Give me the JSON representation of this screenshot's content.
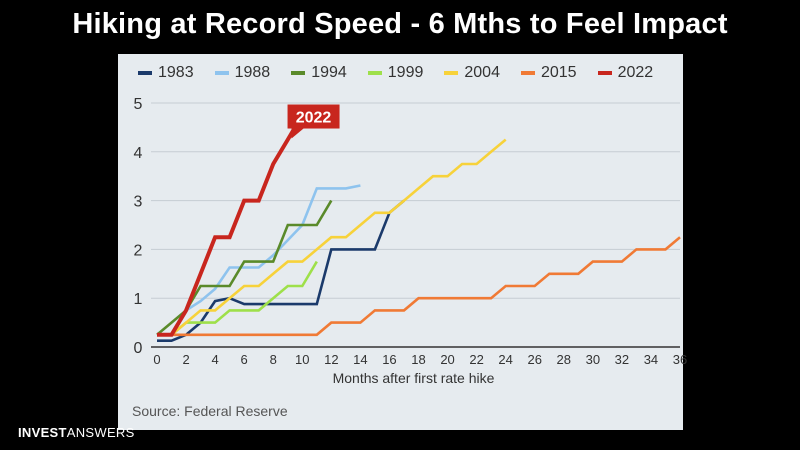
{
  "header": {
    "title": "Hiking at Record Speed - 6 Mths to Feel Impact"
  },
  "footer": {
    "source": "Source: Federal Reserve",
    "brand_bold": "INVEST",
    "brand_light": "ANSWERS"
  },
  "chart_data": {
    "type": "line",
    "xlabel": "Months after first rate hike",
    "ylabel": "",
    "xlim": [
      0,
      36
    ],
    "ylim": [
      0,
      5
    ],
    "xticks": [
      "0",
      "2",
      "4",
      "6",
      "8",
      "10",
      "12",
      "14",
      "16",
      "18",
      "20",
      "22",
      "24",
      "26",
      "28",
      "30",
      "32",
      "34",
      "36"
    ],
    "yticks": [
      "0",
      "1",
      "2",
      "3",
      "4",
      "5"
    ],
    "grid": true,
    "legend_position": "top",
    "annotation": {
      "text": "2022",
      "x": 10.5,
      "y": 4.6
    },
    "series": [
      {
        "name": "1983",
        "color": "#1b3a6b",
        "points": [
          [
            0,
            0.13
          ],
          [
            1,
            0.13
          ],
          [
            2,
            0.25
          ],
          [
            3,
            0.5
          ],
          [
            4,
            0.94
          ],
          [
            5,
            1.0
          ],
          [
            6,
            0.88
          ],
          [
            7,
            0.88
          ],
          [
            8,
            0.88
          ],
          [
            9,
            0.88
          ],
          [
            10,
            0.88
          ],
          [
            11,
            0.88
          ],
          [
            12,
            2.0
          ],
          [
            13,
            2.0
          ],
          [
            14,
            2.0
          ],
          [
            15,
            2.0
          ],
          [
            16,
            2.75
          ],
          [
            17,
            3.0
          ]
        ]
      },
      {
        "name": "1988",
        "color": "#8ec3ee",
        "points": [
          [
            0,
            0.25
          ],
          [
            1,
            0.25
          ],
          [
            2,
            0.75
          ],
          [
            3,
            0.94
          ],
          [
            4,
            1.19
          ],
          [
            5,
            1.63
          ],
          [
            6,
            1.63
          ],
          [
            7,
            1.63
          ],
          [
            8,
            1.88
          ],
          [
            9,
            2.19
          ],
          [
            10,
            2.5
          ],
          [
            11,
            3.25
          ],
          [
            12,
            3.25
          ],
          [
            13,
            3.25
          ],
          [
            14,
            3.31
          ]
        ]
      },
      {
        "name": "1994",
        "color": "#5a8a2a",
        "points": [
          [
            0,
            0.25
          ],
          [
            1,
            0.5
          ],
          [
            2,
            0.75
          ],
          [
            3,
            1.25
          ],
          [
            4,
            1.25
          ],
          [
            5,
            1.25
          ],
          [
            6,
            1.75
          ],
          [
            7,
            1.75
          ],
          [
            8,
            1.75
          ],
          [
            9,
            2.5
          ],
          [
            10,
            2.5
          ],
          [
            11,
            2.5
          ],
          [
            12,
            3.0
          ]
        ]
      },
      {
        "name": "1999",
        "color": "#9ee04a",
        "points": [
          [
            0,
            0.25
          ],
          [
            1,
            0.25
          ],
          [
            2,
            0.5
          ],
          [
            3,
            0.5
          ],
          [
            4,
            0.5
          ],
          [
            5,
            0.75
          ],
          [
            6,
            0.75
          ],
          [
            7,
            0.75
          ],
          [
            8,
            1.0
          ],
          [
            9,
            1.25
          ],
          [
            10,
            1.25
          ],
          [
            11,
            1.75
          ]
        ]
      },
      {
        "name": "2004",
        "color": "#f7d23a",
        "points": [
          [
            0,
            0.25
          ],
          [
            1,
            0.25
          ],
          [
            2,
            0.5
          ],
          [
            3,
            0.75
          ],
          [
            4,
            0.75
          ],
          [
            5,
            1.0
          ],
          [
            6,
            1.25
          ],
          [
            7,
            1.25
          ],
          [
            8,
            1.5
          ],
          [
            9,
            1.75
          ],
          [
            10,
            1.75
          ],
          [
            11,
            2.0
          ],
          [
            12,
            2.25
          ],
          [
            13,
            2.25
          ],
          [
            14,
            2.5
          ],
          [
            15,
            2.75
          ],
          [
            16,
            2.75
          ],
          [
            17,
            3.0
          ],
          [
            18,
            3.25
          ],
          [
            19,
            3.5
          ],
          [
            20,
            3.5
          ],
          [
            21,
            3.75
          ],
          [
            22,
            3.75
          ],
          [
            23,
            4.0
          ],
          [
            24,
            4.25
          ]
        ]
      },
      {
        "name": "2015",
        "color": "#f07a35",
        "points": [
          [
            0,
            0.25
          ],
          [
            11,
            0.25
          ],
          [
            12,
            0.5
          ],
          [
            13,
            0.5
          ],
          [
            14,
            0.5
          ],
          [
            15,
            0.75
          ],
          [
            16,
            0.75
          ],
          [
            17,
            0.75
          ],
          [
            18,
            1.0
          ],
          [
            19,
            1.0
          ],
          [
            20,
            1.0
          ],
          [
            21,
            1.0
          ],
          [
            22,
            1.0
          ],
          [
            23,
            1.0
          ],
          [
            24,
            1.25
          ],
          [
            25,
            1.25
          ],
          [
            26,
            1.25
          ],
          [
            27,
            1.5
          ],
          [
            28,
            1.5
          ],
          [
            29,
            1.5
          ],
          [
            30,
            1.75
          ],
          [
            31,
            1.75
          ],
          [
            32,
            1.75
          ],
          [
            33,
            2.0
          ],
          [
            34,
            2.0
          ],
          [
            35,
            2.0
          ],
          [
            36,
            2.25
          ]
        ]
      },
      {
        "name": "2022",
        "color": "#c8261e",
        "points": [
          [
            0,
            0.25
          ],
          [
            1,
            0.25
          ],
          [
            2,
            0.75
          ],
          [
            3,
            1.5
          ],
          [
            4,
            2.25
          ],
          [
            5,
            2.25
          ],
          [
            6,
            3.0
          ],
          [
            7,
            3.0
          ],
          [
            8,
            3.75
          ],
          [
            9,
            4.25
          ],
          [
            9.5,
            4.5
          ]
        ]
      }
    ]
  }
}
